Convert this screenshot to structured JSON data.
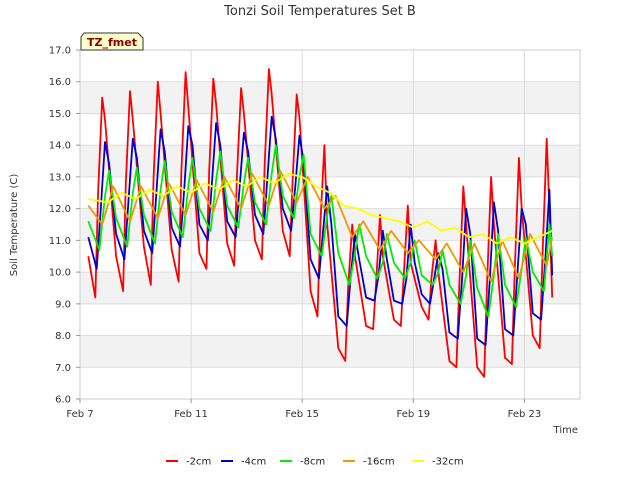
{
  "chart_data": {
    "type": "line",
    "title": "Tonzi Soil Temperatures Set B",
    "xlabel": "Time",
    "ylabel": "Soil Temperature (C)",
    "xlim": [
      0,
      18
    ],
    "ylim": [
      6.0,
      17.0
    ],
    "x_ticks": [
      {
        "value": 0,
        "label": "Feb 7"
      },
      {
        "value": 4,
        "label": "Feb 11"
      },
      {
        "value": 8,
        "label": "Feb 15"
      },
      {
        "value": 12,
        "label": "Feb 19"
      },
      {
        "value": 16,
        "label": "Feb 23"
      }
    ],
    "y_ticks": [
      6.0,
      7.0,
      8.0,
      9.0,
      10.0,
      11.0,
      12.0,
      13.0,
      14.0,
      15.0,
      16.0,
      17.0
    ],
    "grid": true,
    "banded_background": true,
    "legend_position": "bottom",
    "annotation": "TZ_fmet",
    "x_units": "days since Feb 7",
    "series": [
      {
        "name": "-2cm",
        "color": "#ff0000",
        "x": [
          0.3,
          0.55,
          0.65,
          0.8,
          0.9,
          1.3,
          1.55,
          1.65,
          1.8,
          1.9,
          2.3,
          2.55,
          2.65,
          2.8,
          2.9,
          3.3,
          3.55,
          3.65,
          3.8,
          3.9,
          4.3,
          4.55,
          4.65,
          4.8,
          4.9,
          5.3,
          5.55,
          5.65,
          5.8,
          5.9,
          6.3,
          6.55,
          6.65,
          6.8,
          6.9,
          7.3,
          7.55,
          7.65,
          7.8,
          7.9,
          8.3,
          8.55,
          8.65,
          8.8,
          8.9,
          9.3,
          9.55,
          9.65,
          9.8,
          9.9,
          10.3,
          10.55,
          10.65,
          10.8,
          10.9,
          11.3,
          11.55,
          11.65,
          11.8,
          11.9,
          12.3,
          12.55,
          12.65,
          12.8,
          12.9,
          13.3,
          13.55,
          13.65,
          13.8,
          13.9,
          14.3,
          14.55,
          14.65,
          14.8,
          14.9,
          15.3,
          15.55,
          15.65,
          15.8,
          15.9,
          16.3,
          16.55,
          16.65,
          16.8,
          16.9,
          17.0
        ],
        "y": [
          10.5,
          9.2,
          12.5,
          15.5,
          14.8,
          10.5,
          9.4,
          12.8,
          15.7,
          14.8,
          10.8,
          9.6,
          13.0,
          16.0,
          15.0,
          10.7,
          9.7,
          13.2,
          16.3,
          15.2,
          10.6,
          10.1,
          13.2,
          16.1,
          15.3,
          10.9,
          10.2,
          13.0,
          15.8,
          15.0,
          11.0,
          10.4,
          13.4,
          16.4,
          15.6,
          11.3,
          10.5,
          12.8,
          15.6,
          14.9,
          9.4,
          8.6,
          11.5,
          14.0,
          11.5,
          7.6,
          7.2,
          9.5,
          11.5,
          10.5,
          8.3,
          8.2,
          9.5,
          11.8,
          10.5,
          8.5,
          8.3,
          9.8,
          12.1,
          10.3,
          8.9,
          8.5,
          9.8,
          11.0,
          10.0,
          7.2,
          7.0,
          9.5,
          12.7,
          11.5,
          7.0,
          6.7,
          9.5,
          13.0,
          11.5,
          7.3,
          7.1,
          10.0,
          13.6,
          12.0,
          8.0,
          7.6,
          10.5,
          14.2,
          12.0,
          9.2
        ]
      },
      {
        "name": "-4cm",
        "color": "#0000cc",
        "x": [
          0.3,
          0.6,
          0.75,
          0.9,
          1.05,
          1.3,
          1.6,
          1.75,
          1.9,
          2.05,
          2.3,
          2.6,
          2.75,
          2.9,
          3.05,
          3.3,
          3.6,
          3.75,
          3.9,
          4.05,
          4.3,
          4.6,
          4.75,
          4.9,
          5.05,
          5.3,
          5.6,
          5.75,
          5.9,
          6.05,
          6.3,
          6.6,
          6.75,
          6.9,
          7.05,
          7.3,
          7.6,
          7.75,
          7.9,
          8.05,
          8.3,
          8.6,
          8.75,
          8.9,
          9.05,
          9.3,
          9.6,
          9.75,
          9.9,
          10.05,
          10.3,
          10.6,
          10.75,
          10.9,
          11.05,
          11.3,
          11.6,
          11.75,
          11.9,
          12.05,
          12.3,
          12.6,
          12.75,
          12.9,
          13.05,
          13.3,
          13.6,
          13.75,
          13.9,
          14.05,
          14.3,
          14.6,
          14.75,
          14.9,
          15.05,
          15.3,
          15.6,
          15.75,
          15.9,
          16.05,
          16.3,
          16.6,
          16.75,
          16.9,
          17.0
        ],
        "y": [
          11.1,
          10.1,
          12.0,
          14.1,
          13.4,
          11.2,
          10.4,
          12.3,
          14.2,
          13.6,
          11.3,
          10.6,
          12.5,
          14.5,
          13.8,
          11.4,
          10.8,
          12.6,
          14.6,
          14.0,
          11.5,
          11.0,
          12.8,
          14.7,
          14.0,
          11.6,
          11.1,
          12.7,
          14.4,
          13.8,
          11.8,
          11.2,
          13.0,
          14.9,
          14.2,
          12.0,
          11.3,
          12.7,
          14.3,
          13.5,
          10.4,
          9.8,
          11.3,
          12.7,
          11.5,
          8.6,
          8.3,
          9.9,
          11.2,
          10.4,
          9.2,
          9.1,
          9.9,
          11.3,
          10.4,
          9.1,
          9.0,
          9.8,
          11.5,
          10.3,
          9.3,
          9.0,
          9.8,
          10.6,
          10.1,
          8.1,
          7.9,
          9.7,
          12.0,
          11.2,
          7.9,
          7.7,
          9.7,
          12.2,
          11.3,
          8.2,
          8.0,
          10.0,
          12.0,
          11.5,
          8.7,
          8.5,
          10.4,
          12.6,
          9.9
        ]
      },
      {
        "name": "-8cm",
        "color": "#00ee00",
        "x": [
          0.3,
          0.7,
          0.9,
          1.05,
          1.3,
          1.7,
          1.9,
          2.05,
          2.3,
          2.7,
          2.9,
          3.05,
          3.3,
          3.7,
          3.9,
          4.05,
          4.3,
          4.7,
          4.9,
          5.05,
          5.3,
          5.7,
          5.9,
          6.05,
          6.3,
          6.7,
          6.9,
          7.05,
          7.3,
          7.7,
          7.9,
          8.05,
          8.3,
          8.7,
          8.9,
          9.05,
          9.3,
          9.7,
          9.9,
          10.05,
          10.3,
          10.7,
          10.9,
          11.05,
          11.3,
          11.7,
          11.9,
          12.05,
          12.3,
          12.7,
          12.9,
          13.05,
          13.3,
          13.7,
          13.9,
          14.05,
          14.3,
          14.7,
          14.9,
          15.05,
          15.3,
          15.7,
          15.9,
          16.05,
          16.3,
          16.7,
          16.9,
          17.0
        ],
        "y": [
          11.6,
          10.7,
          12.4,
          13.2,
          11.7,
          10.8,
          12.5,
          13.3,
          11.8,
          10.9,
          12.6,
          13.5,
          11.9,
          11.1,
          12.7,
          13.6,
          12.0,
          11.3,
          12.9,
          13.8,
          12.1,
          11.4,
          12.8,
          13.6,
          12.2,
          11.5,
          13.1,
          14.0,
          12.4,
          11.7,
          13.0,
          13.7,
          11.2,
          10.5,
          11.8,
          12.4,
          10.6,
          9.6,
          10.6,
          11.5,
          10.5,
          9.8,
          10.3,
          11.2,
          10.3,
          9.8,
          10.3,
          11.0,
          9.9,
          9.6,
          10.0,
          10.7,
          9.6,
          9.0,
          9.9,
          11.0,
          9.5,
          8.6,
          9.9,
          11.2,
          9.6,
          8.9,
          10.1,
          11.1,
          10.0,
          9.4,
          11.5,
          10.5
        ]
      },
      {
        "name": "-16cm",
        "color": "#ee9900",
        "x": [
          0.3,
          0.8,
          1.2,
          1.8,
          2.2,
          2.8,
          3.2,
          3.8,
          4.2,
          4.8,
          5.2,
          5.8,
          6.2,
          6.8,
          7.2,
          7.8,
          8.2,
          8.8,
          9.2,
          9.8,
          10.2,
          10.8,
          11.2,
          11.8,
          12.2,
          12.8,
          13.2,
          13.8,
          14.2,
          14.8,
          15.2,
          15.8,
          16.2,
          16.8,
          17.0
        ],
        "y": [
          12.1,
          11.5,
          12.7,
          11.6,
          12.7,
          11.7,
          12.8,
          11.8,
          12.9,
          11.9,
          13.0,
          12.0,
          13.1,
          12.1,
          13.2,
          12.2,
          13.0,
          12.0,
          12.4,
          11.1,
          11.6,
          10.7,
          11.3,
          10.6,
          11.0,
          10.4,
          10.9,
          10.0,
          10.9,
          9.7,
          11.0,
          9.8,
          11.2,
          10.2,
          11.1
        ]
      },
      {
        "name": "-32cm",
        "color": "#ffff00",
        "x": [
          0.3,
          1.0,
          1.5,
          2.0,
          2.5,
          3.0,
          3.5,
          4.0,
          4.5,
          5.0,
          5.5,
          6.0,
          6.5,
          7.0,
          7.5,
          8.0,
          8.5,
          9.0,
          9.5,
          10.0,
          10.5,
          11.0,
          11.5,
          12.0,
          12.5,
          13.0,
          13.5,
          14.0,
          14.5,
          15.0,
          15.5,
          16.0,
          16.5,
          17.0
        ],
        "y": [
          12.3,
          12.2,
          12.5,
          12.3,
          12.6,
          12.4,
          12.7,
          12.5,
          12.8,
          12.6,
          12.9,
          12.7,
          13.0,
          12.8,
          13.1,
          13.0,
          12.7,
          12.5,
          12.1,
          12.0,
          11.8,
          11.7,
          11.6,
          11.4,
          11.6,
          11.3,
          11.4,
          11.1,
          11.2,
          10.9,
          11.1,
          10.9,
          11.1,
          11.3
        ]
      }
    ]
  }
}
